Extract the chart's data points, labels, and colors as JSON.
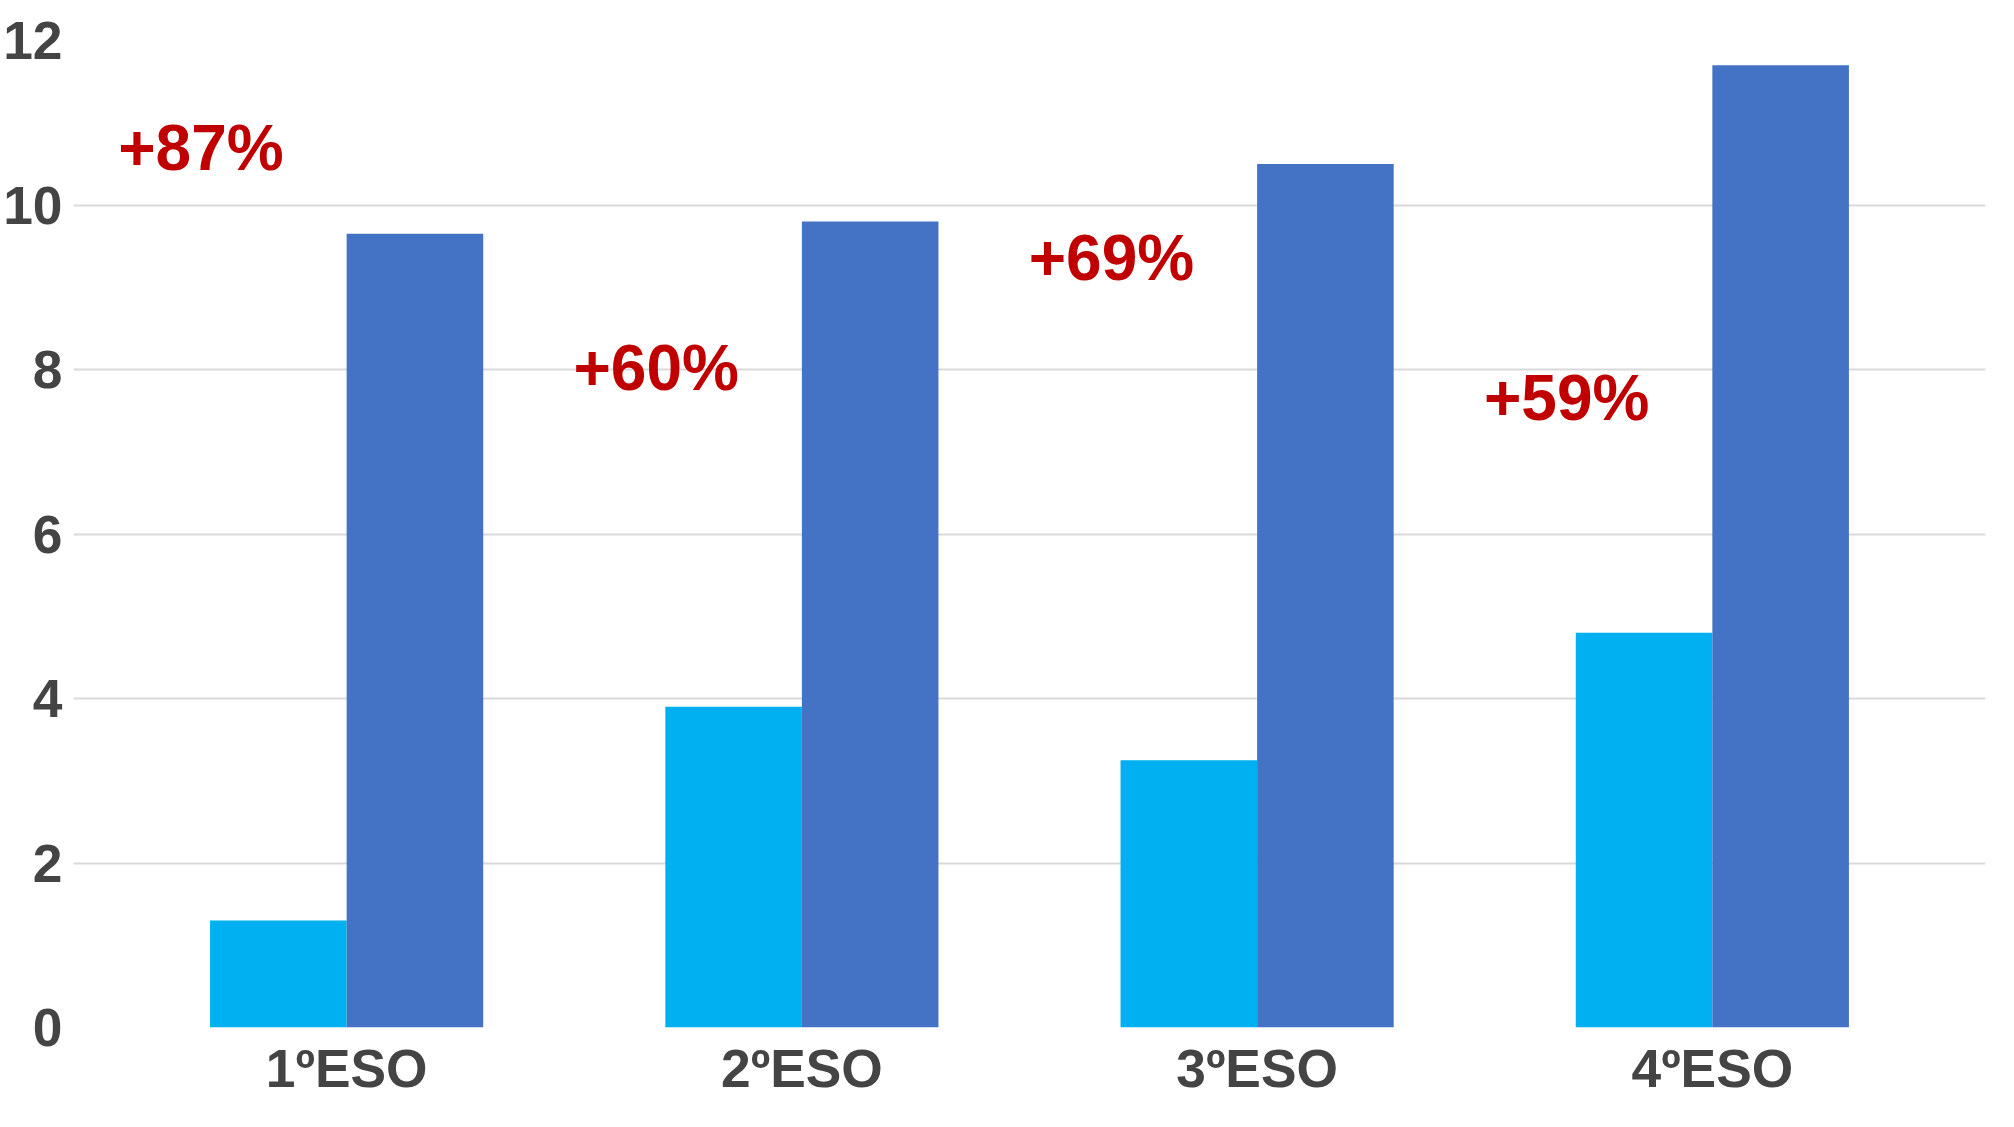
{
  "chart_data": {
    "type": "bar",
    "categories": [
      "1ºESO",
      "2ºESO",
      "3ºESO",
      "4ºESO"
    ],
    "series": [
      {
        "color": "#00b0f0",
        "values": [
          1.3,
          3.9,
          3.25,
          4.8
        ]
      },
      {
        "color": "#4472c4",
        "values": [
          9.65,
          9.8,
          10.5,
          11.7
        ]
      }
    ],
    "ylim": [
      0,
      12
    ],
    "yticks": [
      0,
      2,
      4,
      6,
      8,
      10,
      12
    ],
    "grid": "y",
    "annotations": [
      "+87%",
      "+60%",
      "+69%",
      "+59%"
    ]
  }
}
